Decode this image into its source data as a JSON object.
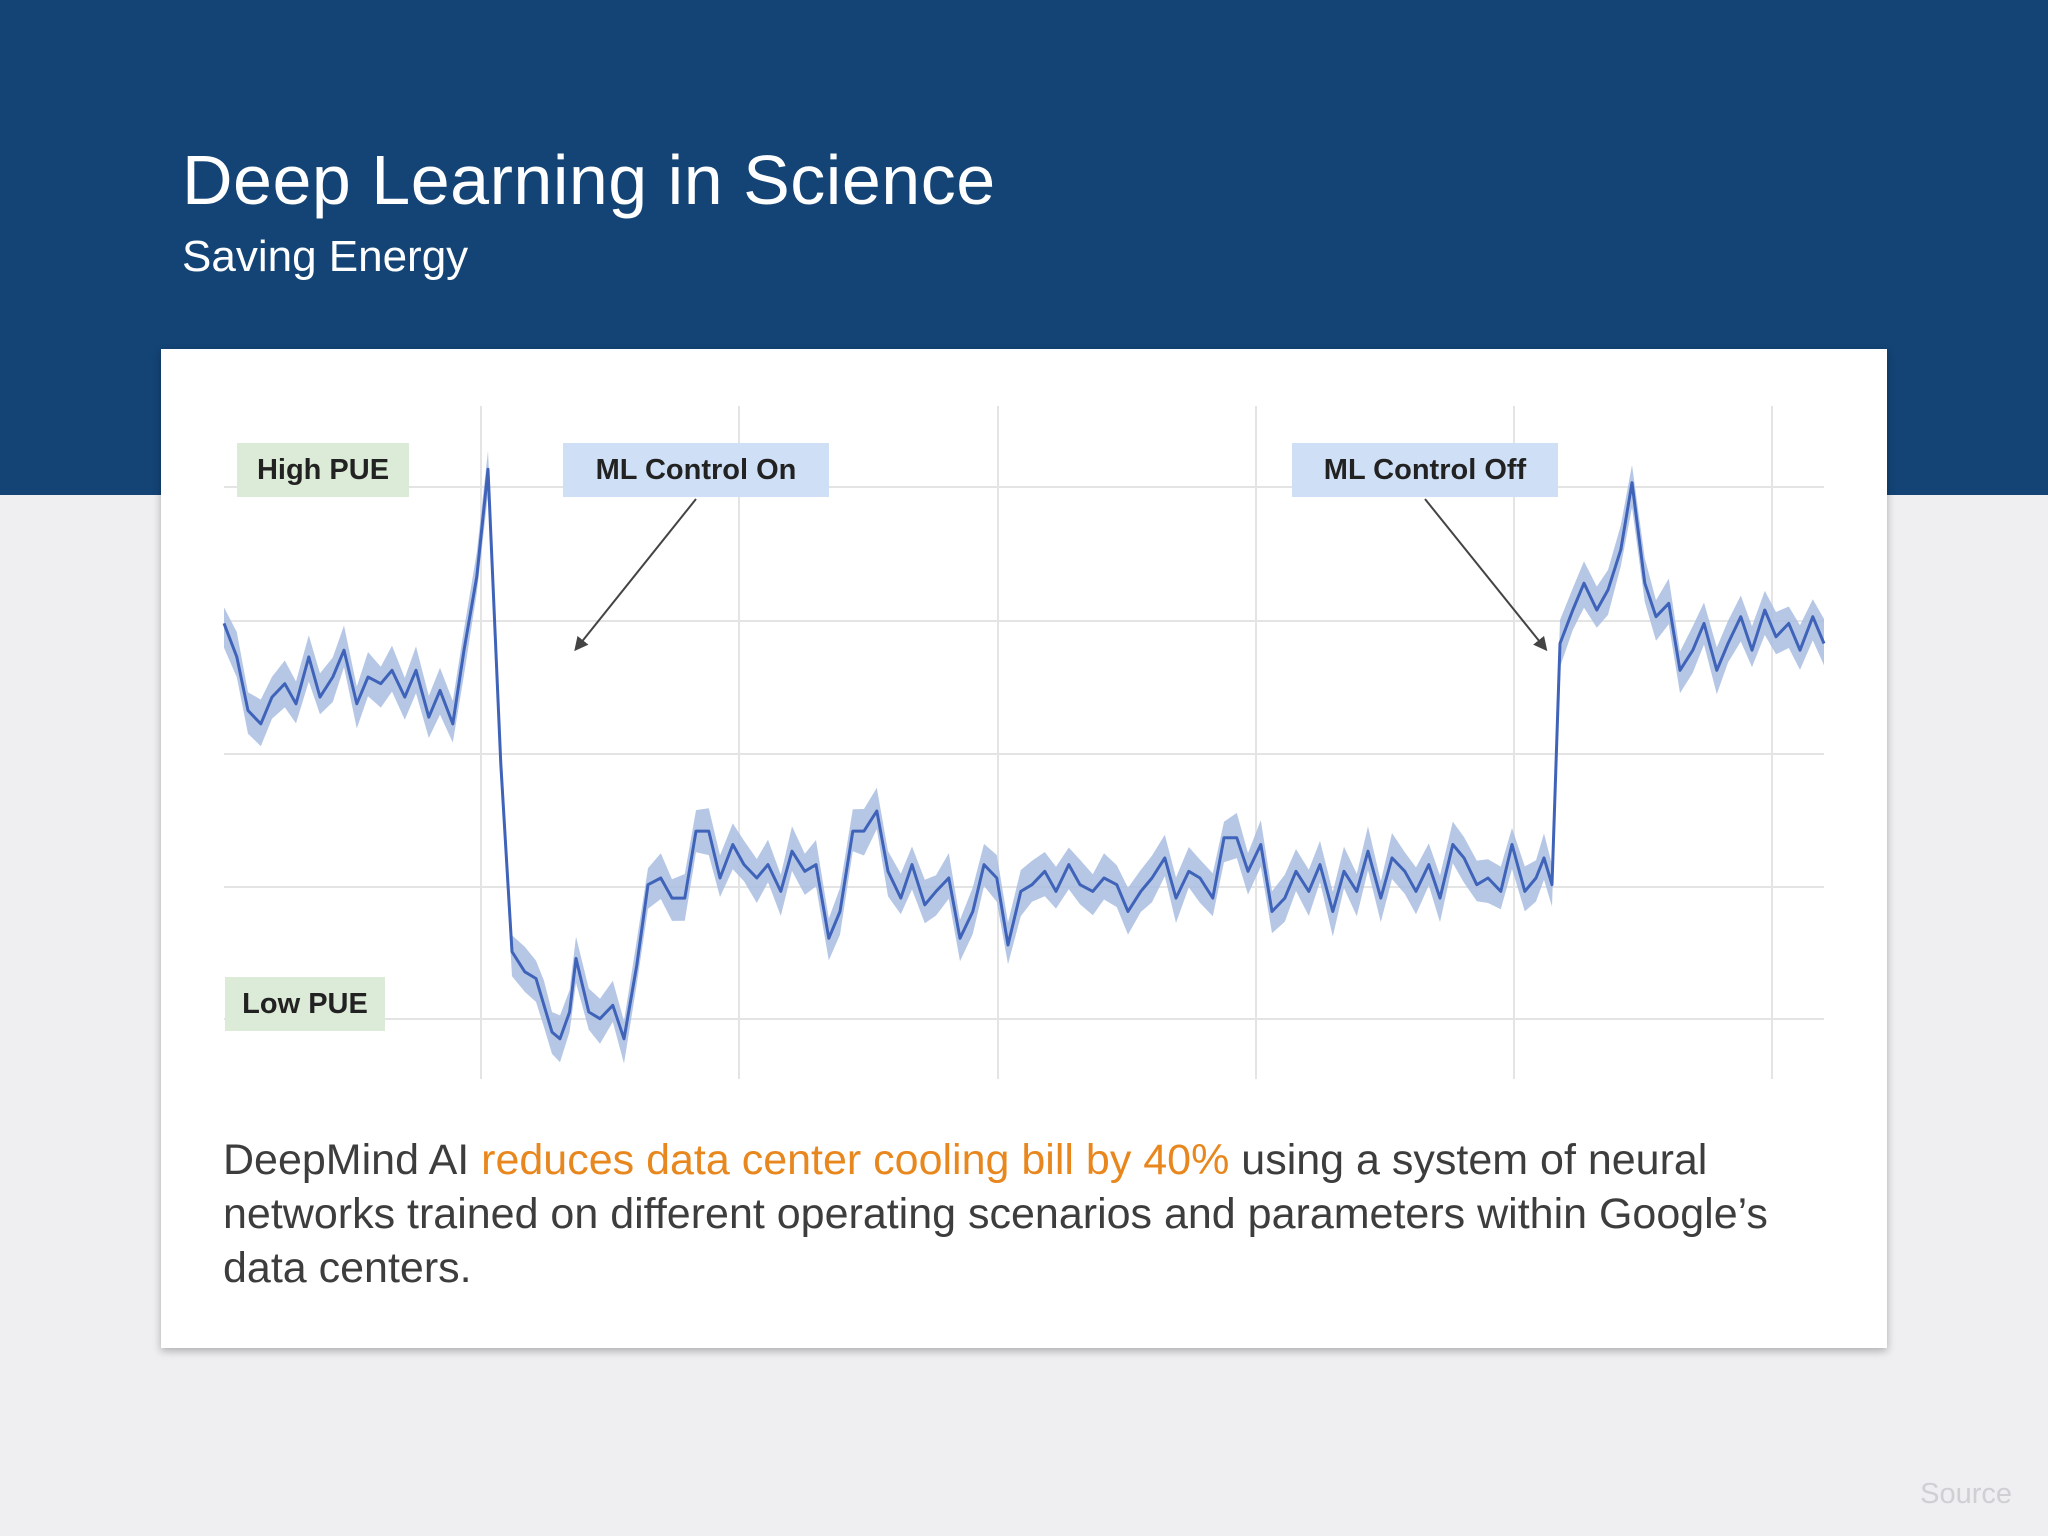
{
  "slide": {
    "title": "Deep Learning in Science",
    "subtitle": "Saving Energy"
  },
  "description": {
    "prefix": "DeepMind AI ",
    "highlight": "reduces data center cooling bill by 40%",
    "suffix": " using a system of neural networks trained on different operating scenarios and parameters within Google’s data centers.",
    "highlight_color": "#e8871e"
  },
  "footer": {
    "source_label": "Source"
  },
  "colors": {
    "header_band": "#134475",
    "line": "#3f63b8",
    "band": "#a9bde2"
  },
  "chart_data": {
    "type": "line",
    "title": "",
    "xlabel": "",
    "ylabel": "",
    "ylim": [
      0,
      100
    ],
    "xlim": [
      0,
      100
    ],
    "grid": true,
    "y_axis_labels": {
      "high": "High PUE",
      "low": "Low PUE"
    },
    "annotations": [
      {
        "text": "ML Control On",
        "x": 22
      },
      {
        "text": "ML Control Off",
        "x": 82.6
      }
    ],
    "series": [
      {
        "x": [
          0,
          0.8,
          1.5,
          2.3,
          3,
          3.8,
          4.5,
          5.3,
          6,
          6.8,
          7.5,
          8.3,
          9,
          9.8,
          10.5,
          11.3,
          12,
          12.8,
          13.5,
          14.3,
          15,
          15.8,
          16.5,
          17.3,
          18,
          18.8,
          19.5,
          20,
          20.5,
          21,
          21.6,
          22,
          22.8,
          23.5,
          24.3,
          25,
          25.8,
          26.5,
          27.3,
          28,
          28.8,
          29.5,
          30.3,
          31,
          31.8,
          32.5,
          33.3,
          34,
          34.8,
          35.5,
          36.3,
          37,
          37.8,
          38.5,
          39.3,
          40,
          40.8,
          41.5,
          42.3,
          43,
          43.8,
          44.5,
          45.3,
          46,
          46.8,
          47.5,
          48.3,
          49,
          49.8,
          50.5,
          51.3,
          52,
          52.8,
          53.5,
          54.3,
          55,
          55.8,
          56.5,
          57.3,
          58,
          58.8,
          59.5,
          60.3,
          61,
          61.8,
          62.5,
          63.3,
          64,
          64.8,
          65.5,
          66.3,
          67,
          67.8,
          68.5,
          69.3,
          70,
          70.8,
          71.5,
          72.3,
          73,
          73.8,
          74.5,
          75.3,
          76,
          76.8,
          77.5,
          78.3,
          79,
          79.8,
          80.5,
          81.3,
          82,
          82.5,
          83,
          83.5,
          84.3,
          85,
          85.8,
          86.5,
          87.3,
          88,
          88.8,
          89.5,
          90.3,
          91,
          91.8,
          92.5,
          93.3,
          94,
          94.8,
          95.5,
          96.3,
          97,
          97.8,
          98.5,
          99.3,
          100
        ],
        "y": [
          68,
          63,
          55,
          53,
          57,
          59,
          56,
          63,
          57,
          60,
          64,
          56,
          60,
          59,
          61,
          57,
          61,
          54,
          58,
          53,
          64,
          75,
          91,
          47,
          19,
          16,
          15,
          11,
          7,
          6,
          10,
          18,
          10,
          9,
          11,
          6,
          17,
          29,
          30,
          27,
          27,
          37,
          37,
          30,
          35,
          32,
          30,
          32,
          28,
          34,
          31,
          32,
          21,
          25,
          37,
          37,
          40,
          31,
          27,
          32,
          26,
          28,
          30,
          21,
          25,
          32,
          30,
          20,
          28,
          29,
          31,
          28,
          32,
          29,
          28,
          30,
          29,
          25,
          28,
          30,
          33,
          27,
          31,
          30,
          27,
          36,
          36,
          31,
          35,
          25,
          27,
          31,
          28,
          32,
          25,
          31,
          28,
          34,
          27,
          33,
          31,
          28,
          32,
          27,
          35,
          33,
          29,
          30,
          28,
          35,
          28,
          30,
          33,
          29,
          65,
          70,
          74,
          70,
          73,
          79,
          89,
          74,
          69,
          71,
          61,
          64,
          68,
          61,
          65,
          69,
          64,
          70,
          66,
          68,
          64,
          69,
          65
        ]
      }
    ]
  }
}
